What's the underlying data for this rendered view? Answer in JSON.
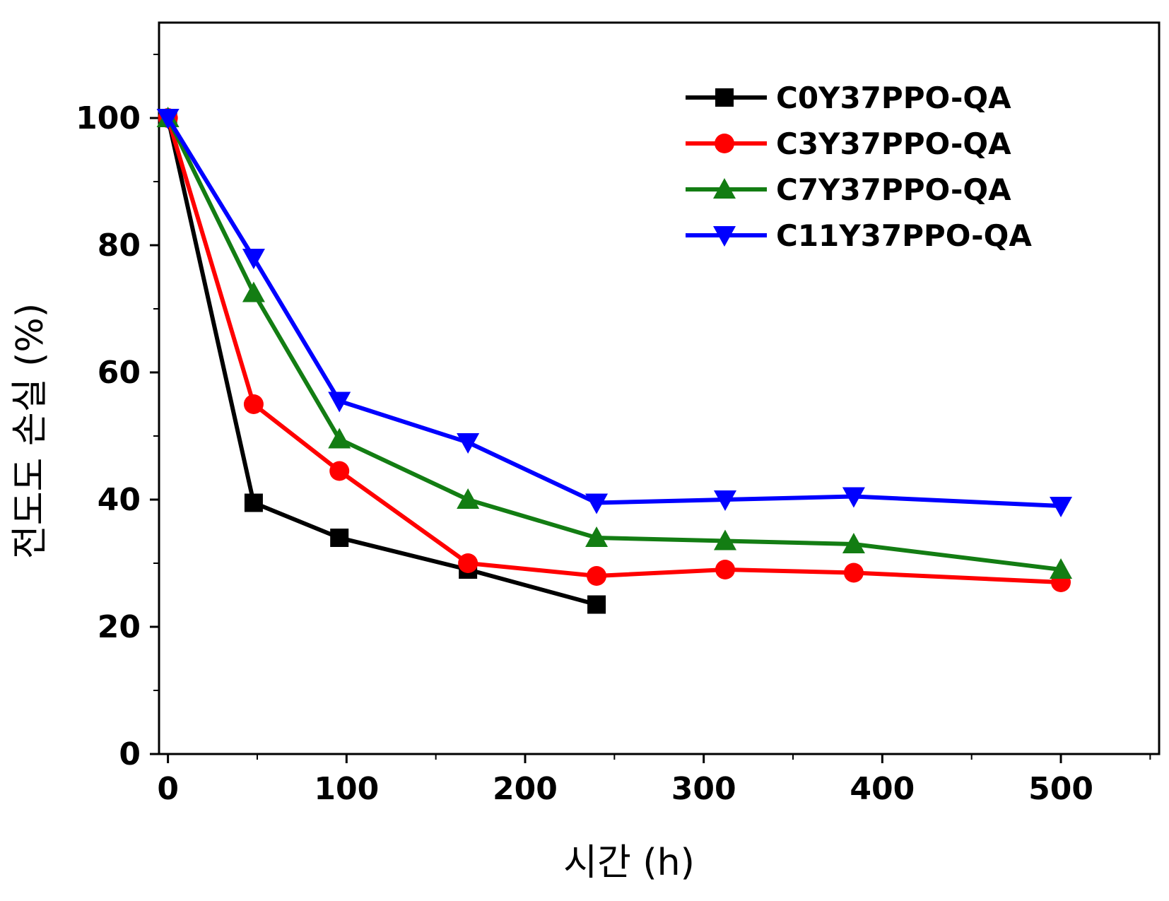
{
  "chart_data": {
    "type": "line",
    "title": "",
    "xlabel": "시간 (h)",
    "ylabel": "전도도 손실 (%)",
    "xlim": [
      -5,
      555
    ],
    "ylim": [
      0,
      115
    ],
    "x_ticks": [
      0,
      100,
      200,
      300,
      400,
      500
    ],
    "y_ticks": [
      0,
      20,
      40,
      60,
      80,
      100
    ],
    "grid": false,
    "legend_position": "top-right",
    "series": [
      {
        "name": "C0Y37PPO-QA",
        "color": "#000000",
        "marker": "square",
        "x": [
          0,
          48,
          96,
          168,
          240
        ],
        "y": [
          100,
          39.5,
          34,
          29,
          23.5
        ]
      },
      {
        "name": "C3Y37PPO-QA",
        "color": "#ff0000",
        "marker": "circle",
        "x": [
          0,
          48,
          96,
          168,
          240,
          312,
          384,
          500
        ],
        "y": [
          100,
          55,
          44.5,
          30,
          28,
          29,
          28.5,
          27
        ]
      },
      {
        "name": "C7Y37PPO-QA",
        "color": "#137d13",
        "marker": "triangle-up",
        "x": [
          0,
          48,
          96,
          168,
          240,
          312,
          384,
          500
        ],
        "y": [
          100,
          72.5,
          49.5,
          40,
          34,
          33.5,
          33,
          29
        ]
      },
      {
        "name": "C11Y37PPO-QA",
        "color": "#0000ff",
        "marker": "triangle-down",
        "x": [
          0,
          48,
          96,
          168,
          240,
          312,
          384,
          500
        ],
        "y": [
          100,
          78,
          55.5,
          49,
          39.5,
          40,
          40.5,
          39
        ]
      }
    ]
  }
}
